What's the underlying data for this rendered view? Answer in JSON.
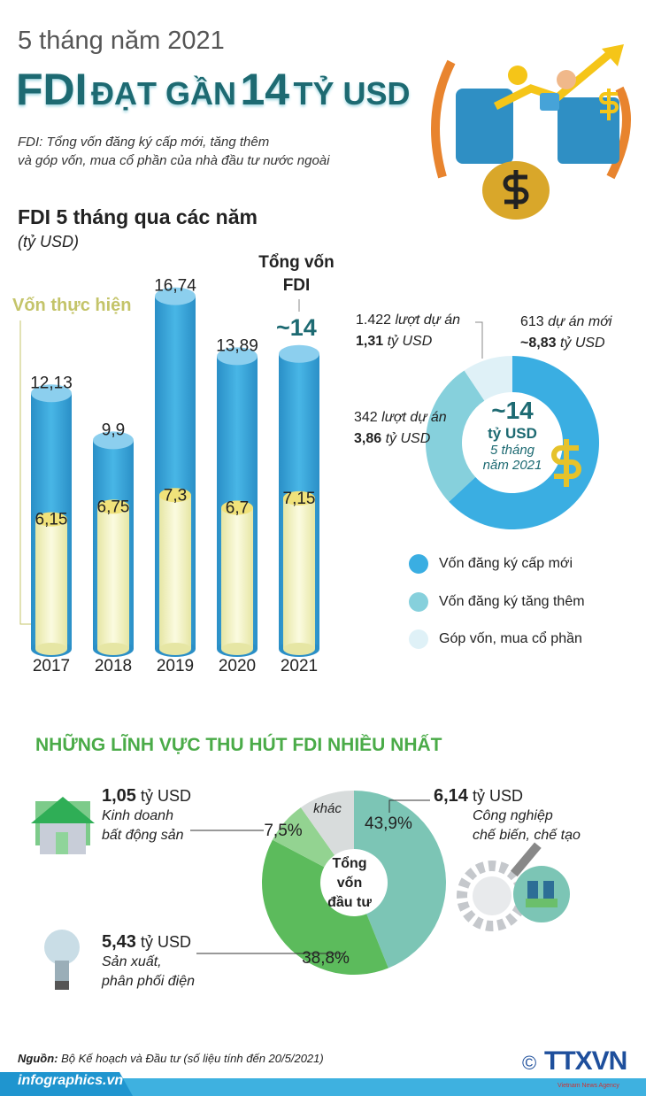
{
  "header": {
    "kicker": "5 tháng năm 2021",
    "title_fdi": "FDI",
    "title_mid": "ĐẠT GẦN",
    "title_num": "14",
    "title_end": "TỶ USD",
    "subtitle_1": "FDI: Tổng vốn đăng ký cấp mới, tăng thêm",
    "subtitle_2": "và góp vốn, mua cổ phần của nhà đầu tư nước ngoài"
  },
  "colors": {
    "teal_title": "#1d6a72",
    "bar_total": "#3aa6d8",
    "bar_realized": "#f4f4c4",
    "new": "#3aaee2",
    "increase": "#86d0dc",
    "stake": "#dff1f7",
    "manufacturing": "#7cc5b5",
    "electricity": "#5cbb5c",
    "real_estate": "#93d391",
    "other": "#d8dcdc",
    "section_green": "#4aab48"
  },
  "chart_data": [
    {
      "type": "bar",
      "title": "FDI 5 tháng qua các năm",
      "ylabel": "(tỷ USD)",
      "categories": [
        "2017",
        "2018",
        "2019",
        "2020",
        "2021"
      ],
      "series": [
        {
          "name": "Tổng vốn FDI",
          "values": [
            12.13,
            9.9,
            16.74,
            13.89,
            14
          ],
          "labels": [
            "12,13",
            "9,9",
            "16,74",
            "13,89",
            "~14"
          ]
        },
        {
          "name": "Vốn thực hiện",
          "values": [
            6.15,
            6.75,
            7.3,
            6.7,
            7.15
          ],
          "labels": [
            "6,15",
            "6,75",
            "7,3",
            "6,7",
            "7,15"
          ]
        }
      ],
      "total_label": "Tổng vốn FDI",
      "total_label_1": "Tổng vốn",
      "total_label_2": "FDI",
      "total_value": "~14",
      "realized_label": "Vốn thực hiện",
      "ylim": [
        0,
        17
      ]
    },
    {
      "type": "pie",
      "center_value": "~14",
      "center_unit": "tỷ USD",
      "center_line1": "5 tháng",
      "center_line2": "năm 2021",
      "slices": [
        {
          "name": "Vốn đăng ký cấp mới",
          "value": 8.83,
          "count": "613",
          "count_label": "dự án mới",
          "amount": "~8,83",
          "unit": "tỷ USD"
        },
        {
          "name": "Vốn đăng ký tăng thêm",
          "value": 3.86,
          "count": "342",
          "count_label": "lượt dự án",
          "amount": "3,86",
          "unit": "tỷ USD"
        },
        {
          "name": "Góp vốn, mua cổ phần",
          "value": 1.31,
          "count": "1.422",
          "count_label": "lượt dự án",
          "amount": "1,31",
          "unit": "tỷ USD"
        }
      ]
    },
    {
      "type": "pie",
      "title": "NHỮNG LĨNH VỰC THU HÚT FDI NHIỀU NHẤT",
      "center_line1": "Tổng",
      "center_line2": "vốn",
      "center_line3": "đầu tư",
      "slices": [
        {
          "name": "Công nghiệp chế biến, chế tạo",
          "name_1": "Công nghiệp",
          "name_2": "chế biến, chế tạo",
          "percent": 43.9,
          "percent_label": "43,9%",
          "amount": "6,14",
          "unit": "tỷ USD"
        },
        {
          "name": "Sản xuất, phân phối điện",
          "name_1": "Sản xuất,",
          "name_2": "phân phối điện",
          "percent": 38.8,
          "percent_label": "38,8%",
          "amount": "5,43",
          "unit": "tỷ USD"
        },
        {
          "name": "Kinh doanh bất động sản",
          "name_1": "Kinh doanh",
          "name_2": "bất động sản",
          "percent": 7.5,
          "percent_label": "7,5%",
          "amount": "1,05",
          "unit": "tỷ USD"
        },
        {
          "name": "khác",
          "percent": 9.8,
          "percent_label": "khác"
        }
      ]
    }
  ],
  "footer": {
    "source_label": "Nguồn:",
    "source_text": "Bộ Kế hoạch và Đầu tư (số liệu tính đến 20/5/2021)",
    "site": "infographics.vn",
    "copyright": "©",
    "agency": "TTXVN",
    "agency_sub": "Vietnam News Agency"
  }
}
